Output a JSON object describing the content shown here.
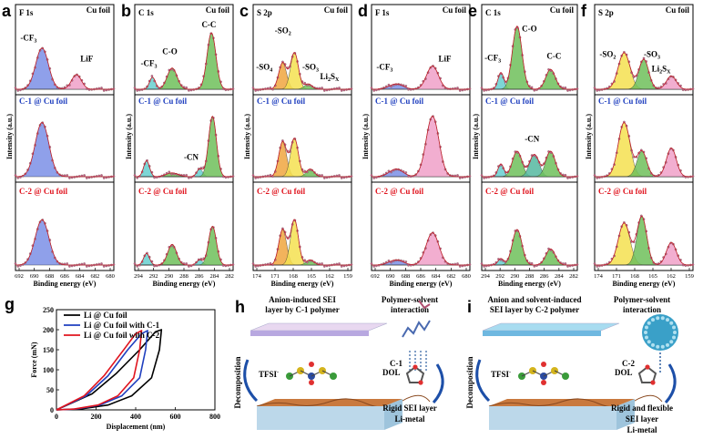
{
  "figure": {
    "panels_xps": [
      {
        "label": "a",
        "title": "F 1s",
        "substrate": "Cu foil",
        "annotations": [
          "-CF",
          "LiF"
        ],
        "xticks": [
          "692",
          "690",
          "688",
          "686",
          "684",
          "682",
          "680"
        ],
        "xlabel": "Binding energy (eV)"
      },
      {
        "label": "b",
        "title": "C 1s",
        "substrate": "Cu foil",
        "annotations": [
          "-CF",
          "C-O",
          "C-C",
          "-CN"
        ],
        "xticks": [
          "294",
          "292",
          "290",
          "288",
          "286",
          "284",
          "282"
        ],
        "xlabel": "Binding energy (eV)"
      },
      {
        "label": "c",
        "title": "S 2p",
        "substrate": "Cu foil",
        "annotations": [
          "-SO",
          "-SO",
          "-SO",
          "Li",
          "S"
        ],
        "xticks": [
          "174",
          "171",
          "168",
          "165",
          "162",
          "159"
        ],
        "xlabel": "Binding energy (eV)"
      },
      {
        "label": "d",
        "title": "F 1s",
        "substrate": "Cu foil",
        "annotations": [
          "-CF",
          "LiF"
        ],
        "xticks": [
          "692",
          "690",
          "688",
          "686",
          "684",
          "682",
          "680"
        ],
        "xlabel": "Binding energy (eV)"
      },
      {
        "label": "e",
        "title": "C 1s",
        "substrate": "Cu foil",
        "annotations": [
          "-CF",
          "C-O",
          "C-C",
          "-CN"
        ],
        "xticks": [
          "294",
          "292",
          "290",
          "288",
          "286",
          "284",
          "282"
        ],
        "xlabel": "Binding energy (eV)"
      },
      {
        "label": "f",
        "title": "S 2p",
        "substrate": "Cu foil",
        "annotations": [
          "-SO",
          "-SO",
          "Li",
          "S"
        ],
        "xticks": [
          "174",
          "171",
          "168",
          "165",
          "162",
          "159"
        ],
        "xlabel": "Binding energy (eV)"
      }
    ],
    "sample_labels": {
      "c1": "C-1 @ Cu foil",
      "c2": "C-2 @ Cu foil"
    },
    "ylabel": "Intensity (a.u.)",
    "subscripts": {
      "three": "3",
      "two": "2",
      "x": "X"
    },
    "panel_g": {
      "label": "g",
      "legend": [
        "Li @ Cu foil",
        "Li @ Cu foil with C-1",
        "Li @ Cu foil with C-2"
      ],
      "xlabel": "Displacement (nm)",
      "ylabel": "Force (mN)"
    },
    "panel_h": {
      "label": "h",
      "title_line1": "Anion-induced SEI",
      "title_line2": "layer by C-1 polymer",
      "interaction_line1": "Polymer-solvent",
      "interaction_line2": "interaction",
      "polymer": "C-1",
      "tfsi": "TFSI",
      "tfsi_sup": "-",
      "dol": "DOL",
      "decomposition": "Decomposition",
      "result_line1": "Rigid SEI layer",
      "result_line2": "Li-metal"
    },
    "panel_i": {
      "label": "i",
      "title_line1": "Anion and  solvent-induced",
      "title_line2": "SEI layer by C-2 polymer",
      "interaction_line1": "Polymer-solvent",
      "interaction_line2": "interaction",
      "polymer": "C-2",
      "tfsi": "TFSI",
      "tfsi_sup": "-",
      "dol": "DOL",
      "decomposition": "Decomposition",
      "result_line1": "Rigid and flexible",
      "result_line2": "SEI layer",
      "result_line3": "Li-metal"
    }
  },
  "chart_data": [
    {
      "type": "line",
      "title": "g",
      "xlabel": "Displacement (nm)",
      "ylabel": "Force (mN)",
      "xlim": [
        0,
        800
      ],
      "ylim": [
        0,
        250
      ],
      "xticks": [
        0,
        200,
        400,
        600,
        800
      ],
      "yticks": [
        0,
        50,
        100,
        150,
        200,
        250
      ],
      "legend_position": "top-left",
      "series": [
        {
          "name": "Li @ Cu foil",
          "color": "#000000",
          "x": [
            0,
            180,
            300,
            420,
            500,
            530,
            520,
            480,
            380,
            260,
            120,
            0
          ],
          "y": [
            0,
            40,
            90,
            150,
            195,
            200,
            150,
            80,
            35,
            12,
            2,
            0
          ]
        },
        {
          "name": "Li @ Cu foil with C-1",
          "color": "#1f3fbf",
          "x": [
            0,
            150,
            260,
            360,
            430,
            460,
            450,
            420,
            330,
            220,
            100,
            0
          ],
          "y": [
            0,
            35,
            85,
            150,
            190,
            198,
            150,
            80,
            35,
            12,
            2,
            0
          ]
        },
        {
          "name": "Li @ Cu foil with C-2",
          "color": "#e0141e",
          "x": [
            0,
            140,
            240,
            340,
            400,
            430,
            420,
            390,
            310,
            210,
            90,
            0
          ],
          "y": [
            0,
            35,
            85,
            150,
            190,
            198,
            150,
            80,
            35,
            12,
            2,
            0
          ]
        }
      ]
    }
  ]
}
